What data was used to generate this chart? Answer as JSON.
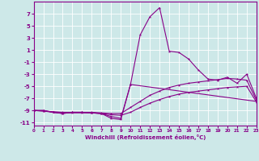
{
  "xlabel": "Windchill (Refroidissement éolien,°C)",
  "background_color": "#cde8e8",
  "line_color": "#880088",
  "grid_color": "#ffffff",
  "xlim": [
    0,
    23
  ],
  "ylim": [
    -11.5,
    9.0
  ],
  "yticks": [
    7,
    5,
    3,
    1,
    -1,
    -3,
    -5,
    -7,
    -9,
    -11
  ],
  "xticks": [
    0,
    1,
    2,
    3,
    4,
    5,
    6,
    7,
    8,
    9,
    10,
    11,
    12,
    13,
    14,
    15,
    16,
    17,
    18,
    19,
    20,
    21,
    22,
    23
  ],
  "line1_x": [
    0,
    1,
    2,
    3,
    4,
    5,
    6,
    7,
    8,
    9,
    10,
    11,
    12,
    13,
    14,
    15,
    16,
    17,
    18,
    19,
    20,
    21,
    22,
    23
  ],
  "line1_y": [
    -9.0,
    -9.0,
    -9.3,
    -9.5,
    -9.3,
    -9.3,
    -9.4,
    -9.5,
    -10.3,
    -10.5,
    -4.7,
    3.5,
    6.5,
    8.0,
    0.8,
    0.6,
    -0.5,
    -2.3,
    -3.8,
    -4.0,
    -3.5,
    -4.5,
    -3.0,
    -7.0
  ],
  "line2_x": [
    0,
    1,
    2,
    3,
    4,
    5,
    6,
    7,
    8,
    9,
    10,
    23
  ],
  "line2_y": [
    -9.0,
    -9.0,
    -9.3,
    -9.5,
    -9.3,
    -9.3,
    -9.4,
    -9.5,
    -10.0,
    -10.3,
    -4.7,
    -7.5
  ],
  "line3_x": [
    0,
    1,
    2,
    3,
    4,
    5,
    6,
    7,
    8,
    9,
    10,
    11,
    12,
    13,
    14,
    15,
    16,
    17,
    18,
    19,
    20,
    21,
    22,
    23
  ],
  "line3_y": [
    -9.0,
    -9.1,
    -9.2,
    -9.3,
    -9.3,
    -9.3,
    -9.3,
    -9.4,
    -9.5,
    -9.5,
    -8.5,
    -7.5,
    -6.5,
    -5.8,
    -5.2,
    -4.8,
    -4.5,
    -4.3,
    -4.1,
    -3.9,
    -3.7,
    -3.8,
    -4.0,
    -7.3
  ],
  "line4_x": [
    0,
    1,
    2,
    3,
    4,
    5,
    6,
    7,
    8,
    9,
    10,
    11,
    12,
    13,
    14,
    15,
    16,
    17,
    18,
    19,
    20,
    21,
    22,
    23
  ],
  "line4_y": [
    -9.0,
    -9.1,
    -9.3,
    -9.4,
    -9.4,
    -9.4,
    -9.4,
    -9.5,
    -9.7,
    -9.8,
    -9.3,
    -8.5,
    -7.8,
    -7.2,
    -6.7,
    -6.3,
    -6.0,
    -5.8,
    -5.6,
    -5.4,
    -5.2,
    -5.1,
    -5.0,
    -7.6
  ]
}
